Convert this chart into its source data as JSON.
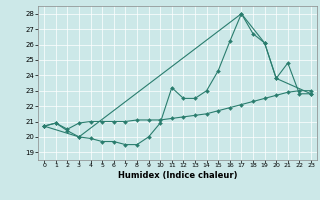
{
  "title": "",
  "xlabel": "Humidex (Indice chaleur)",
  "background_color": "#cce8e8",
  "line_color": "#2a7d6e",
  "xlim": [
    -0.5,
    23.5
  ],
  "ylim": [
    18.5,
    28.5
  ],
  "yticks": [
    19,
    20,
    21,
    22,
    23,
    24,
    25,
    26,
    27,
    28
  ],
  "xticks": [
    0,
    1,
    2,
    3,
    4,
    5,
    6,
    7,
    8,
    9,
    10,
    11,
    12,
    13,
    14,
    15,
    16,
    17,
    18,
    19,
    20,
    21,
    22,
    23
  ],
  "series1_x": [
    0,
    1,
    2,
    3,
    4,
    5,
    6,
    7,
    8,
    9,
    10,
    11,
    12,
    13,
    14,
    15,
    16,
    17,
    18,
    19,
    20,
    21,
    22,
    23
  ],
  "series1_y": [
    20.7,
    20.9,
    20.4,
    20.0,
    19.9,
    19.7,
    19.7,
    19.5,
    19.5,
    20.0,
    20.9,
    23.2,
    22.5,
    22.5,
    23.0,
    24.3,
    26.2,
    28.0,
    26.7,
    26.1,
    23.8,
    24.8,
    22.8,
    22.8
  ],
  "series2_x": [
    0,
    1,
    2,
    3,
    4,
    5,
    6,
    7,
    8,
    9,
    10,
    11,
    12,
    13,
    14,
    15,
    16,
    17,
    18,
    19,
    20,
    21,
    22,
    23
  ],
  "series2_y": [
    20.7,
    20.9,
    20.5,
    20.9,
    21.0,
    21.0,
    21.0,
    21.0,
    21.1,
    21.1,
    21.1,
    21.2,
    21.3,
    21.4,
    21.5,
    21.7,
    21.9,
    22.1,
    22.3,
    22.5,
    22.7,
    22.9,
    23.0,
    23.0
  ],
  "series3_x": [
    0,
    3,
    17,
    19,
    20,
    23
  ],
  "series3_y": [
    20.7,
    20.0,
    28.0,
    26.1,
    23.8,
    22.8
  ]
}
